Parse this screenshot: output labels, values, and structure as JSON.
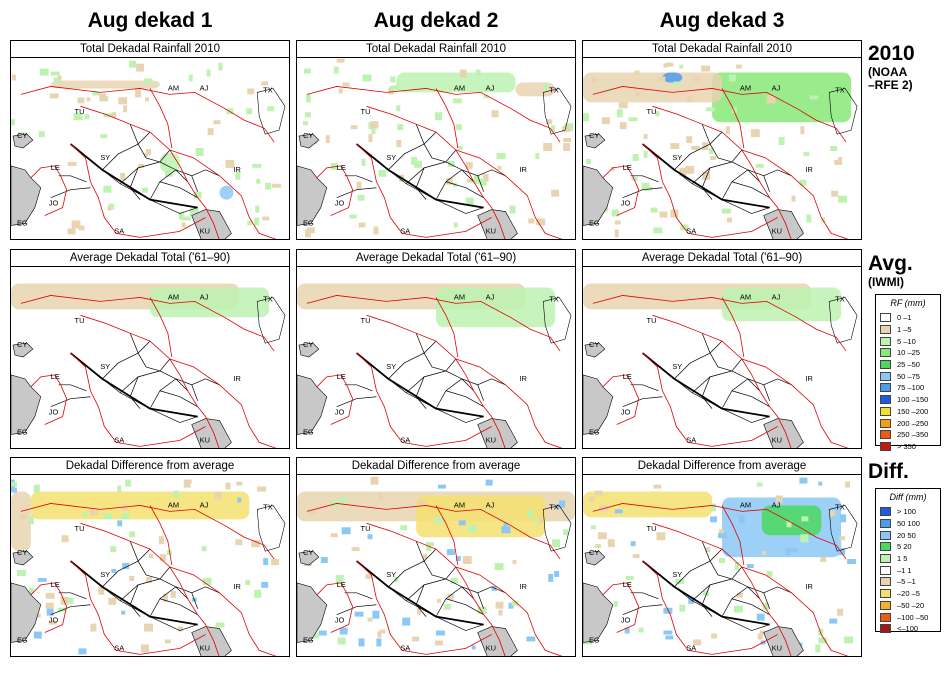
{
  "columns": [
    "Aug dekad 1",
    "Aug dekad 2",
    "Aug dekad 3"
  ],
  "rows": [
    {
      "id": "total",
      "title": "Total Dekadal Rainfall 2010",
      "label": "2010",
      "sublabel": [
        "(NOAA",
        "–RFE 2)"
      ]
    },
    {
      "id": "avg",
      "title": "Average Dekadal Total ('61–90)",
      "label": "Avg.",
      "sublabel": [
        "(IWMI)"
      ]
    },
    {
      "id": "diff",
      "title": "Dekadal Difference from average",
      "label": "Diff.",
      "sublabel": []
    }
  ],
  "map_labels": [
    "AM",
    "AJ",
    "TX",
    "TU",
    "CY",
    "SY",
    "IR",
    "LE",
    "JO",
    "EG",
    "SA",
    "KU"
  ],
  "legend_rf": {
    "title": "RF (mm)",
    "items": [
      {
        "label": "0 –1",
        "color": "#ffffff"
      },
      {
        "label": "1 –5",
        "color": "#e8d4b0"
      },
      {
        "label": "5 –10",
        "color": "#bdf2b0"
      },
      {
        "label": "10 –25",
        "color": "#88e878"
      },
      {
        "label": "25 –50",
        "color": "#4cd860"
      },
      {
        "label": "50 –75",
        "color": "#8cc8f4"
      },
      {
        "label": "75 –100",
        "color": "#4c9cec"
      },
      {
        "label": "100 –150",
        "color": "#1c5ce0"
      },
      {
        "label": "150 –200",
        "color": "#f4e030"
      },
      {
        "label": "200 –250",
        "color": "#f4a010"
      },
      {
        "label": "250 –350",
        "color": "#f05818"
      },
      {
        "label": "> 350",
        "color": "#c01818"
      }
    ]
  },
  "legend_diff": {
    "title": "Diff (mm)",
    "items": [
      {
        "label": "> 100",
        "color": "#1c5ce0"
      },
      {
        "label": "50  100",
        "color": "#4c9cec"
      },
      {
        "label": "20  50",
        "color": "#8cc8f4"
      },
      {
        "label": "5  20",
        "color": "#4cd860"
      },
      {
        "label": "1   5",
        "color": "#bdf2b0"
      },
      {
        "label": "–1   1",
        "color": "#ffffff"
      },
      {
        "label": "–5  –1",
        "color": "#e8d4b0"
      },
      {
        "label": "–20  –5",
        "color": "#f4e070"
      },
      {
        "label": "–50  –20",
        "color": "#f4b030"
      },
      {
        "label": "–100  –50",
        "color": "#f05818"
      },
      {
        "label": "<–100",
        "color": "#a01818"
      }
    ]
  },
  "colors": {
    "border_country": "#e00000",
    "border_province": "#000000",
    "sea": "#c8c8c8"
  }
}
